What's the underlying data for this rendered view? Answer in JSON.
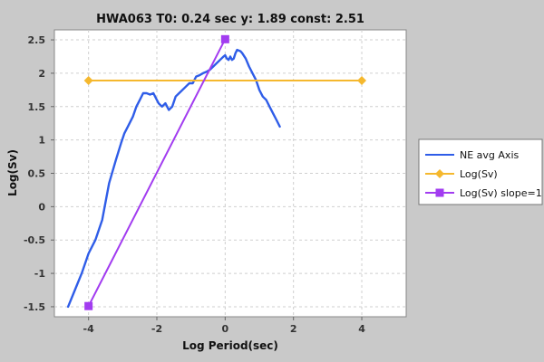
{
  "chart_data": {
    "type": "line",
    "title": "HWA063 T0: 0.24 sec  y: 1.89 const: 2.51",
    "xlabel": "Log Period(sec)",
    "ylabel": "Log(Sv)",
    "xlim": [
      -5,
      5.3
    ],
    "ylim": [
      -1.65,
      2.65
    ],
    "x_ticks": [
      -4,
      -2,
      0,
      2,
      4
    ],
    "y_ticks": [
      -1.5,
      -1,
      -0.5,
      0,
      0.5,
      1,
      1.5,
      2,
      2.5
    ],
    "x_tick_labels": [
      "-4",
      "-2",
      "0",
      "2",
      "4"
    ],
    "y_tick_labels": [
      "-1.5",
      "-1",
      "-0.5",
      "0",
      "0.5",
      "1",
      "1.5",
      "2",
      "2.5"
    ],
    "grid": true,
    "legend_position": "right",
    "series": [
      {
        "name": "NE avg Axis",
        "color": "#2f5de8",
        "marker": "none",
        "x": [
          -4.6,
          -4.4,
          -4.2,
          -4.0,
          -3.8,
          -3.6,
          -3.4,
          -3.2,
          -3.05,
          -2.95,
          -2.85,
          -2.7,
          -2.6,
          -2.5,
          -2.4,
          -2.3,
          -2.2,
          -2.1,
          -2.0,
          -1.95,
          -1.85,
          -1.75,
          -1.65,
          -1.55,
          -1.45,
          -1.35,
          -1.25,
          -1.15,
          -1.05,
          -0.95,
          -0.85,
          -0.75,
          -0.65,
          -0.55,
          -0.45,
          -0.35,
          -0.25,
          -0.15,
          -0.05,
          0.0,
          0.05,
          0.1,
          0.15,
          0.2,
          0.25,
          0.3,
          0.35,
          0.4,
          0.45,
          0.5,
          0.6,
          0.7,
          0.8,
          0.9,
          1.0,
          1.1,
          1.2,
          1.3,
          1.4,
          1.5,
          1.6
        ],
        "y": [
          -1.5,
          -1.25,
          -1.0,
          -0.7,
          -0.5,
          -0.2,
          0.35,
          0.7,
          0.95,
          1.1,
          1.2,
          1.35,
          1.5,
          1.6,
          1.7,
          1.7,
          1.68,
          1.7,
          1.6,
          1.55,
          1.5,
          1.55,
          1.45,
          1.5,
          1.65,
          1.7,
          1.75,
          1.8,
          1.85,
          1.85,
          1.95,
          1.97,
          2.0,
          2.02,
          2.05,
          2.1,
          2.15,
          2.2,
          2.25,
          2.27,
          2.22,
          2.2,
          2.25,
          2.2,
          2.22,
          2.3,
          2.35,
          2.34,
          2.33,
          2.3,
          2.22,
          2.1,
          2.0,
          1.9,
          1.75,
          1.65,
          1.6,
          1.5,
          1.4,
          1.3,
          1.2
        ]
      },
      {
        "name": "Log(Sv)",
        "color": "#f5b82e",
        "marker": "diamond",
        "x": [
          -4,
          4
        ],
        "y": [
          1.89,
          1.89
        ]
      },
      {
        "name": "Log(Sv) slope=1",
        "color": "#a23cf0",
        "marker": "square",
        "x": [
          -4,
          0
        ],
        "y": [
          -1.49,
          2.51
        ]
      }
    ]
  }
}
